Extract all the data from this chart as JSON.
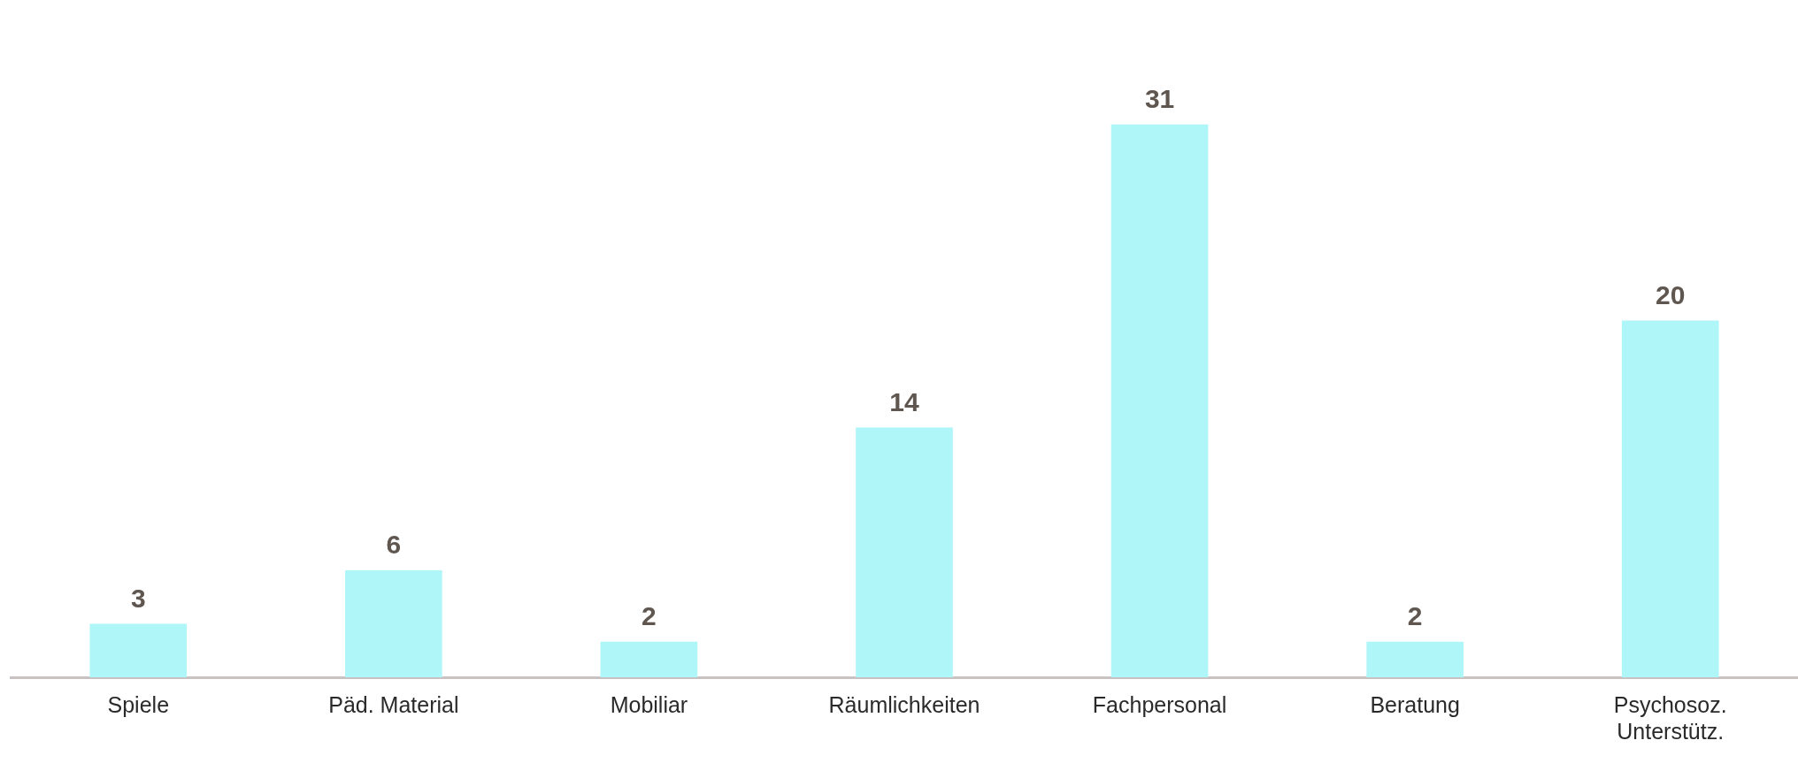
{
  "chart_data": {
    "type": "bar",
    "categories": [
      "Spiele",
      "Päd. Material",
      "Mobiliar",
      "Räumlichkeiten",
      "Fachpersonal",
      "Beratung",
      "Psychosoz. Unterstütz."
    ],
    "values": [
      3,
      6,
      2,
      14,
      31,
      2,
      20
    ],
    "color": "#aef6f8",
    "data_labels": true,
    "grid": false,
    "legend": false
  }
}
